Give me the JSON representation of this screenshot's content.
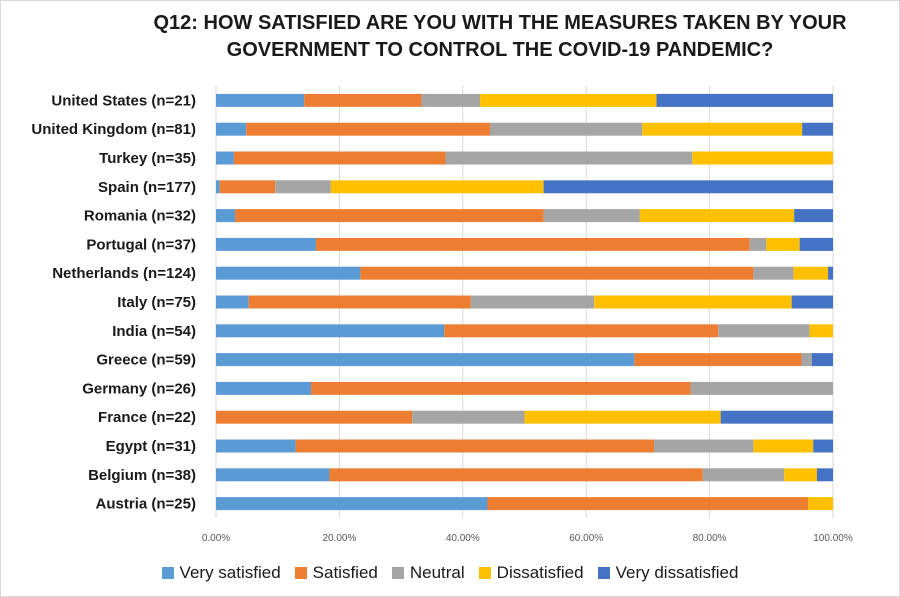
{
  "chart_data": {
    "type": "bar",
    "orientation": "horizontal",
    "stacked": true,
    "title_line1": "Q12: HOW SATISFIED ARE YOU WITH THE MEASURES TAKEN BY YOUR",
    "title_line2": "GOVERNMENT TO CONTROL THE COVID-19 PANDEMIC?",
    "xlim": [
      0,
      100
    ],
    "x_ticks": [
      "0.00%",
      "20.00%",
      "40.00%",
      "60.00%",
      "80.00%",
      "100.00%"
    ],
    "grid": "vertical",
    "legend_position": "bottom",
    "categories": [
      "United States (n=21)",
      "United Kingdom (n=81)",
      "Turkey (n=35)",
      "Spain (n=177)",
      "Romania (n=32)",
      "Portugal (n=37)",
      "Netherlands (n=124)",
      "Italy (n=75)",
      "India (n=54)",
      "Greece (n=59)",
      "Germany (n=26)",
      "France (n=22)",
      "Egypt (n=31)",
      "Belgium (n=38)",
      "Austria (n=25)"
    ],
    "series": [
      {
        "name": "Very satisfied",
        "color": "#5b9bd5",
        "values": [
          14.3,
          4.9,
          2.9,
          0.6,
          3.1,
          16.2,
          23.4,
          5.3,
          37.0,
          67.8,
          15.4,
          0.0,
          12.9,
          18.4,
          44.0
        ]
      },
      {
        "name": "Satisfied",
        "color": "#ed7d31",
        "values": [
          19.0,
          39.5,
          34.3,
          9.0,
          50.0,
          70.3,
          63.7,
          36.0,
          44.4,
          27.1,
          61.5,
          31.8,
          58.1,
          60.5,
          52.0
        ]
      },
      {
        "name": "Neutral",
        "color": "#a5a5a5",
        "values": [
          9.5,
          24.7,
          40.0,
          9.0,
          15.6,
          2.7,
          6.5,
          20.0,
          14.8,
          1.7,
          23.1,
          18.2,
          16.1,
          13.2,
          0.0
        ]
      },
      {
        "name": "Dissatisfied",
        "color": "#ffc000",
        "values": [
          28.6,
          25.9,
          22.8,
          34.5,
          25.0,
          5.4,
          5.6,
          32.0,
          3.8,
          0.0,
          0.0,
          31.8,
          9.7,
          5.3,
          4.0
        ]
      },
      {
        "name": "Very dissatisfied",
        "color": "#4472c4",
        "values": [
          28.6,
          5.0,
          0.0,
          46.9,
          6.3,
          5.4,
          0.8,
          6.7,
          0.0,
          3.4,
          0.0,
          18.2,
          3.2,
          2.6,
          0.0
        ]
      }
    ]
  }
}
